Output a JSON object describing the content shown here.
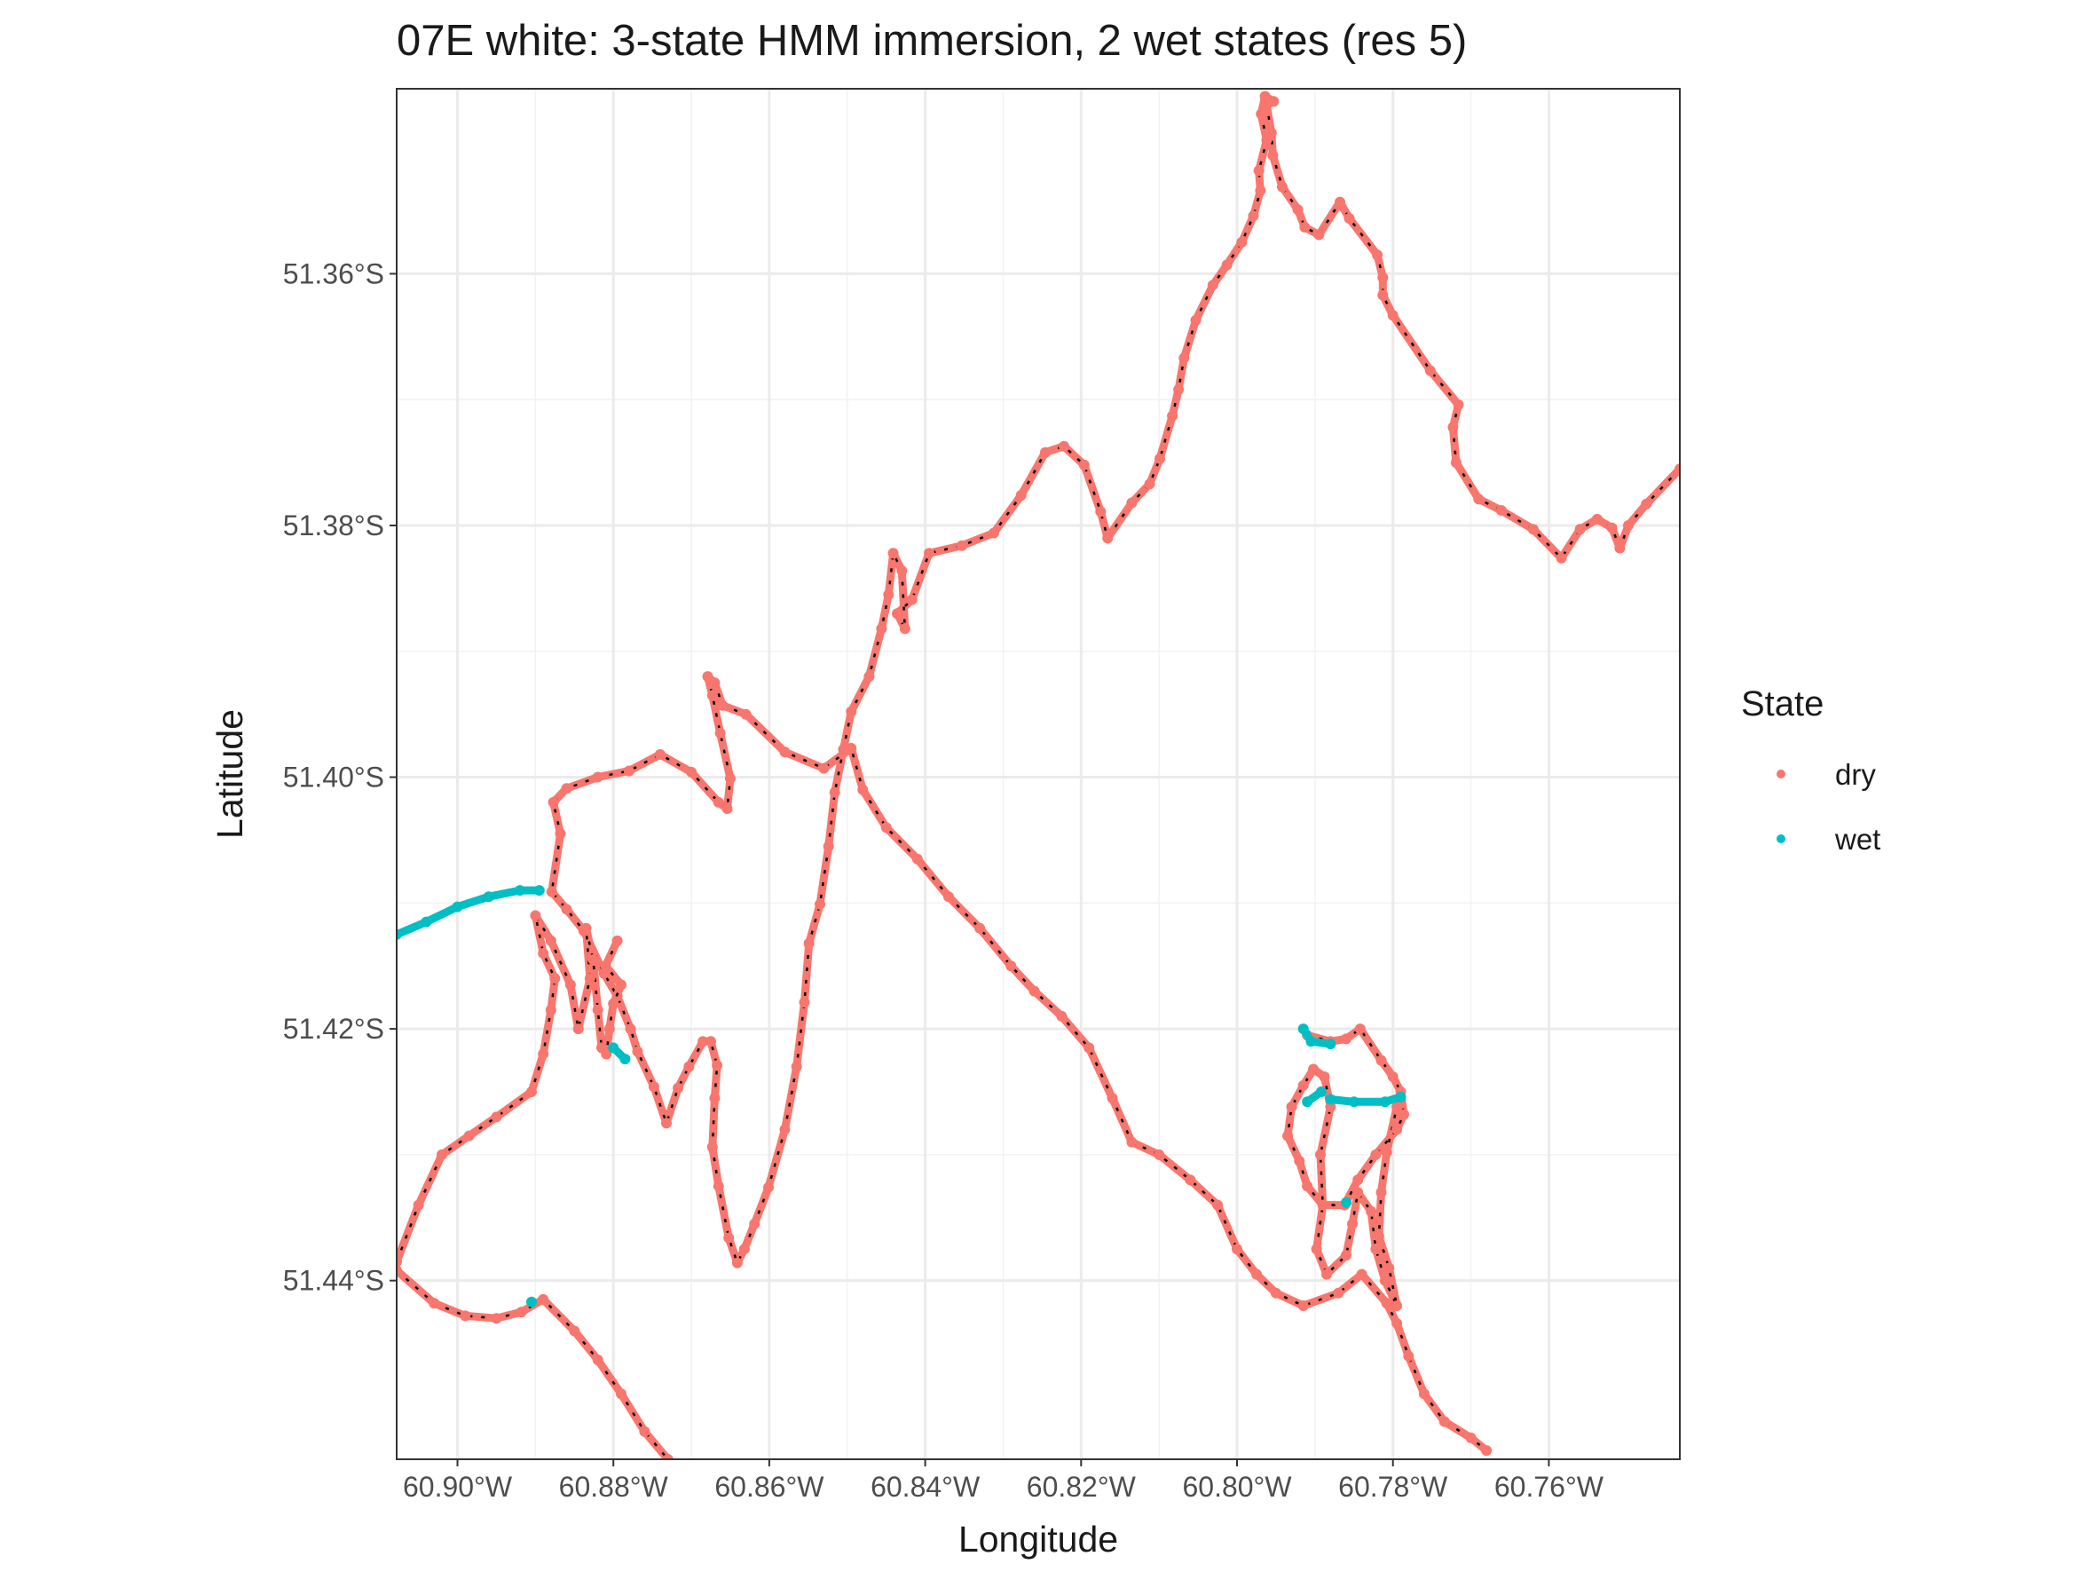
{
  "chart_data": {
    "type": "scatter",
    "title": "07E white: 3-state HMM immersion, 2 wet states (res 5)",
    "xlabel": "Longitude",
    "ylabel": "Latitude",
    "xlim": [
      -60.9078,
      -60.7432
    ],
    "ylim": [
      -51.4542,
      -51.3453
    ],
    "x_ticks": [
      {
        "value": -60.9,
        "label": "60.90°W"
      },
      {
        "value": -60.88,
        "label": "60.88°W"
      },
      {
        "value": -60.86,
        "label": "60.86°W"
      },
      {
        "value": -60.84,
        "label": "60.84°W"
      },
      {
        "value": -60.82,
        "label": "60.82°W"
      },
      {
        "value": -60.8,
        "label": "60.80°W"
      },
      {
        "value": -60.78,
        "label": "60.78°W"
      },
      {
        "value": -60.76,
        "label": "60.76°W"
      }
    ],
    "y_ticks": [
      {
        "value": -51.36,
        "label": "51.36°S"
      },
      {
        "value": -51.38,
        "label": "51.38°S"
      },
      {
        "value": -51.4,
        "label": "51.40°S"
      },
      {
        "value": -51.42,
        "label": "51.42°S"
      },
      {
        "value": -51.44,
        "label": "51.44°S"
      }
    ],
    "grid": true,
    "legend": {
      "title": "State",
      "position": "right"
    },
    "series": [
      {
        "name": "dry",
        "color": "#F8766D",
        "connector_color": "#000000",
        "tracks": [
          [
            [
              -60.7432,
              -51.3755
            ],
            [
              -60.7475,
              -51.3783
            ],
            [
              -60.7498,
              -51.38
            ],
            [
              -60.7509,
              -51.3818
            ],
            [
              -60.7519,
              -51.3802
            ],
            [
              -60.7538,
              -51.3795
            ],
            [
              -60.756,
              -51.3803
            ],
            [
              -60.7584,
              -51.3826
            ],
            [
              -60.762,
              -51.3803
            ],
            [
              -60.7661,
              -51.3788
            ],
            [
              -60.769,
              -51.3779
            ],
            [
              -60.7719,
              -51.375
            ],
            [
              -60.7723,
              -51.3722
            ],
            [
              -60.7716,
              -51.3704
            ],
            [
              -60.7752,
              -51.3677
            ],
            [
              -60.78,
              -51.3633
            ],
            [
              -60.7813,
              -51.3617
            ],
            [
              -60.7813,
              -51.3603
            ],
            [
              -60.782,
              -51.3585
            ],
            [
              -60.7856,
              -51.3556
            ],
            [
              -60.7868,
              -51.3543
            ],
            [
              -60.7895,
              -51.3569
            ],
            [
              -60.7913,
              -51.3563
            ],
            [
              -60.7922,
              -51.3549
            ],
            [
              -60.7942,
              -51.3531
            ],
            [
              -60.7954,
              -51.3506
            ],
            [
              -60.7956,
              -51.3488
            ],
            [
              -60.7962,
              -51.3466
            ],
            [
              -60.7953,
              -51.3463
            ],
            [
              -60.7964,
              -51.3459
            ],
            [
              -60.7969,
              -51.3473
            ],
            [
              -60.7962,
              -51.3494
            ],
            [
              -60.7972,
              -51.3518
            ],
            [
              -60.797,
              -51.3534
            ],
            [
              -60.7979,
              -51.3554
            ],
            [
              -60.7994,
              -51.3575
            ],
            [
              -60.8013,
              -51.3593
            ],
            [
              -60.8031,
              -51.3609
            ],
            [
              -60.8053,
              -51.3637
            ],
            [
              -60.8068,
              -51.3667
            ],
            [
              -60.8075,
              -51.3692
            ],
            [
              -60.8083,
              -51.3713
            ],
            [
              -60.8099,
              -51.3747
            ],
            [
              -60.8112,
              -51.3767
            ],
            [
              -60.8135,
              -51.3782
            ],
            [
              -60.8166,
              -51.381
            ],
            [
              -60.8175,
              -51.3789
            ],
            [
              -60.8196,
              -51.3752
            ],
            [
              -60.8222,
              -51.3737
            ],
            [
              -60.8246,
              -51.3742
            ],
            [
              -60.8277,
              -51.3776
            ],
            [
              -60.8312,
              -51.3806
            ],
            [
              -60.8353,
              -51.3816
            ],
            [
              -60.8395,
              -51.3822
            ],
            [
              -60.8417,
              -51.3859
            ],
            [
              -60.8436,
              -51.387
            ],
            [
              -60.8426,
              -51.3882
            ],
            [
              -60.843,
              -51.3836
            ],
            [
              -60.8441,
              -51.3822
            ],
            [
              -60.8447,
              -51.3855
            ],
            [
              -60.8456,
              -51.3882
            ],
            [
              -60.8472,
              -51.392
            ],
            [
              -60.8495,
              -51.3948
            ],
            [
              -60.8505,
              -51.3978
            ],
            [
              -60.8516,
              -51.4012
            ],
            [
              -60.8524,
              -51.4055
            ],
            [
              -60.8535,
              -51.4101
            ],
            [
              -60.8549,
              -51.4132
            ],
            [
              -60.8555,
              -51.4179
            ],
            [
              -60.8565,
              -51.423
            ],
            [
              -60.858,
              -51.428
            ],
            [
              -60.8601,
              -51.4326
            ],
            [
              -60.8619,
              -51.4355
            ],
            [
              -60.8632,
              -51.4375
            ],
            [
              -60.8641,
              -51.4386
            ],
            [
              -60.8652,
              -51.4366
            ],
            [
              -60.8665,
              -51.4325
            ],
            [
              -60.8673,
              -51.4294
            ],
            [
              -60.867,
              -51.4255
            ],
            [
              -60.8667,
              -51.4229
            ],
            [
              -60.8675,
              -51.421
            ],
            [
              -60.8685,
              -51.421
            ],
            [
              -60.8703,
              -51.423
            ],
            [
              -60.8717,
              -51.4247
            ],
            [
              -60.8732,
              -51.4275
            ],
            [
              -60.8748,
              -51.4246
            ],
            [
              -60.8769,
              -51.4218
            ],
            [
              -60.8778,
              -51.42
            ],
            [
              -60.8795,
              -51.4174
            ],
            [
              -60.8812,
              -51.4156
            ],
            [
              -60.8838,
              -51.4122
            ],
            [
              -60.886,
              -51.4105
            ],
            [
              -60.8879,
              -51.4091
            ],
            [
              -60.8868,
              -51.4045
            ],
            [
              -60.8877,
              -51.402
            ],
            [
              -60.886,
              -51.4009
            ],
            [
              -60.882,
              -51.4
            ],
            [
              -60.878,
              -51.3995
            ],
            [
              -60.874,
              -51.3982
            ],
            [
              -60.87,
              -51.3996
            ],
            [
              -60.8665,
              -51.402
            ],
            [
              -60.8654,
              -51.4025
            ],
            [
              -60.865,
              -51.4001
            ],
            [
              -60.8663,
              -51.3965
            ],
            [
              -60.8673,
              -51.3935
            ],
            [
              -60.8679,
              -51.392
            ],
            [
              -60.867,
              -51.3925
            ],
            [
              -60.866,
              -51.3943
            ],
            [
              -60.863,
              -51.395
            ],
            [
              -60.858,
              -51.398
            ],
            [
              -60.853,
              -51.3993
            ],
            [
              -60.8495,
              -51.3977
            ],
            [
              -60.848,
              -51.401
            ],
            [
              -60.845,
              -51.404
            ],
            [
              -60.841,
              -51.4065
            ],
            [
              -60.837,
              -51.4095
            ],
            [
              -60.833,
              -51.412
            ],
            [
              -60.829,
              -51.415
            ],
            [
              -60.826,
              -51.417
            ],
            [
              -60.8225,
              -51.419
            ],
            [
              -60.819,
              -51.4215
            ],
            [
              -60.816,
              -51.4255
            ],
            [
              -60.8135,
              -51.429
            ],
            [
              -60.81,
              -51.43
            ],
            [
              -60.806,
              -51.432
            ],
            [
              -60.8025,
              -51.434
            ],
            [
              -60.8,
              -51.4375
            ],
            [
              -60.7975,
              -51.4395
            ],
            [
              -60.795,
              -51.441
            ],
            [
              -60.7915,
              -51.442
            ],
            [
              -60.787,
              -51.441
            ],
            [
              -60.784,
              -51.4395
            ],
            [
              -60.7808,
              -51.4418
            ],
            [
              -60.7795,
              -51.4434
            ],
            [
              -60.778,
              -51.446
            ],
            [
              -60.776,
              -51.449
            ],
            [
              -60.7734,
              -51.4512
            ],
            [
              -60.77,
              -51.4525
            ],
            [
              -60.768,
              -51.4535
            ]
          ],
          [
            [
              -60.9078,
              -51.4385
            ],
            [
              -60.905,
              -51.434
            ],
            [
              -60.902,
              -51.43
            ],
            [
              -60.8985,
              -51.4285
            ],
            [
              -60.895,
              -51.427
            ],
            [
              -60.8905,
              -51.425
            ],
            [
              -60.889,
              -51.422
            ],
            [
              -60.888,
              -51.4185
            ],
            [
              -60.8875,
              -51.416
            ],
            [
              -60.889,
              -51.414
            ],
            [
              -60.89,
              -51.411
            ],
            [
              -60.888,
              -51.413
            ],
            [
              -60.8855,
              -51.4165
            ],
            [
              -60.8845,
              -51.42
            ],
            [
              -60.883,
              -51.416
            ],
            [
              -60.8835,
              -51.412
            ],
            [
              -60.8826,
              -51.4145
            ],
            [
              -60.882,
              -51.4185
            ],
            [
              -60.8815,
              -51.4215
            ],
            [
              -60.8809,
              -51.422
            ],
            [
              -60.8805,
              -51.42
            ],
            [
              -60.88,
              -51.418
            ],
            [
              -60.879,
              -51.4165
            ],
            [
              -60.881,
              -51.415
            ],
            [
              -60.8795,
              -51.413
            ]
          ],
          [
            [
              -60.9078,
              -51.4392
            ],
            [
              -60.903,
              -51.4418
            ],
            [
              -60.899,
              -51.4428
            ],
            [
              -60.895,
              -51.443
            ],
            [
              -60.8918,
              -51.4425
            ],
            [
              -60.889,
              -51.4415
            ],
            [
              -60.885,
              -51.444
            ],
            [
              -60.882,
              -51.4463
            ],
            [
              -60.879,
              -51.449
            ],
            [
              -60.876,
              -51.452
            ],
            [
              -60.873,
              -51.4542
            ]
          ],
          [
            [
              -60.791,
              -51.4205
            ],
            [
              -60.788,
              -51.421
            ],
            [
              -60.786,
              -51.4208
            ],
            [
              -60.7842,
              -51.42
            ],
            [
              -60.7815,
              -51.4225
            ],
            [
              -60.78,
              -51.4238
            ],
            [
              -60.779,
              -51.425
            ],
            [
              -60.7786,
              -51.4268
            ],
            [
              -60.7795,
              -51.428
            ],
            [
              -60.7822,
              -51.43
            ],
            [
              -60.7845,
              -51.432
            ],
            [
              -60.7862,
              -51.434
            ],
            [
              -60.789,
              -51.434
            ],
            [
              -60.791,
              -51.4325
            ],
            [
              -60.792,
              -51.4305
            ],
            [
              -60.7935,
              -51.4285
            ],
            [
              -60.793,
              -51.4262
            ],
            [
              -60.7915,
              -51.4245
            ],
            [
              -60.7902,
              -51.4232
            ],
            [
              -60.7888,
              -51.4238
            ],
            [
              -60.788,
              -51.4262
            ],
            [
              -60.7893,
              -51.43
            ],
            [
              -60.789,
              -51.434
            ],
            [
              -60.7898,
              -51.4375
            ],
            [
              -60.7885,
              -51.4395
            ],
            [
              -60.786,
              -51.438
            ],
            [
              -60.7852,
              -51.4355
            ],
            [
              -60.7845,
              -51.433
            ],
            [
              -60.7828,
              -51.4345
            ],
            [
              -60.7822,
              -51.4375
            ],
            [
              -60.781,
              -51.44
            ],
            [
              -60.7795,
              -51.442
            ],
            [
              -60.7805,
              -51.439
            ],
            [
              -60.7818,
              -51.4365
            ],
            [
              -60.7815,
              -51.433
            ],
            [
              -60.7808,
              -51.4298
            ],
            [
              -60.7795,
              -51.4262
            ]
          ]
        ]
      },
      {
        "name": "wet",
        "color": "#00BFC4",
        "tracks": [
          [
            [
              -60.9078,
              -51.4125
            ],
            [
              -60.904,
              -51.4115
            ],
            [
              -60.9,
              -51.4103
            ],
            [
              -60.896,
              -51.4095
            ],
            [
              -60.892,
              -51.409
            ],
            [
              -60.8895,
              -51.409
            ]
          ],
          [
            [
              -60.88,
              -51.4215
            ],
            [
              -60.8785,
              -51.4224
            ]
          ],
          [
            [
              -60.8905,
              -51.4417
            ]
          ],
          [
            [
              -60.7915,
              -51.42
            ],
            [
              -60.7905,
              -51.421
            ],
            [
              -60.788,
              -51.4212
            ]
          ],
          [
            [
              -60.788,
              -51.4256
            ],
            [
              -60.785,
              -51.4258
            ],
            [
              -60.781,
              -51.4258
            ],
            [
              -60.779,
              -51.4254
            ]
          ],
          [
            [
              -60.7892,
              -51.425
            ],
            [
              -60.791,
              -51.4258
            ]
          ],
          [
            [
              -60.786,
              -51.4338
            ]
          ]
        ]
      }
    ]
  }
}
